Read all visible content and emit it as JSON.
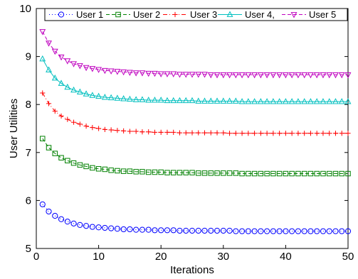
{
  "chart_data": {
    "type": "line",
    "xlabel": "Iterations",
    "ylabel": "User Utilities",
    "xlim": [
      0,
      50
    ],
    "ylim": [
      5,
      10
    ],
    "xticks": [
      0,
      10,
      20,
      30,
      40,
      50
    ],
    "yticks": [
      5,
      6,
      7,
      8,
      9,
      10
    ],
    "grid": false,
    "legend_position": "top",
    "x": [
      1,
      2,
      3,
      4,
      5,
      6,
      7,
      8,
      9,
      10,
      11,
      12,
      13,
      14,
      15,
      16,
      17,
      18,
      19,
      20,
      21,
      22,
      23,
      24,
      25,
      26,
      27,
      28,
      29,
      30,
      31,
      32,
      33,
      34,
      35,
      36,
      37,
      38,
      39,
      40,
      41,
      42,
      43,
      44,
      45,
      46,
      47,
      48,
      49,
      50
    ],
    "series": [
      {
        "name": "User 1",
        "color": "#0000ff",
        "marker": "circle",
        "line": "dotted",
        "values": [
          5.92,
          5.77,
          5.68,
          5.61,
          5.56,
          5.52,
          5.49,
          5.47,
          5.45,
          5.44,
          5.43,
          5.42,
          5.41,
          5.4,
          5.4,
          5.39,
          5.39,
          5.39,
          5.38,
          5.38,
          5.38,
          5.38,
          5.37,
          5.37,
          5.37,
          5.37,
          5.37,
          5.37,
          5.37,
          5.37,
          5.37,
          5.36,
          5.36,
          5.36,
          5.36,
          5.36,
          5.36,
          5.36,
          5.36,
          5.36,
          5.36,
          5.36,
          5.36,
          5.36,
          5.36,
          5.36,
          5.36,
          5.36,
          5.36,
          5.36
        ]
      },
      {
        "name": "User 2",
        "color": "#008000",
        "marker": "square",
        "line": "dashed",
        "values": [
          7.29,
          7.1,
          6.98,
          6.89,
          6.83,
          6.78,
          6.74,
          6.71,
          6.68,
          6.66,
          6.65,
          6.63,
          6.62,
          6.61,
          6.61,
          6.6,
          6.6,
          6.59,
          6.59,
          6.59,
          6.58,
          6.58,
          6.58,
          6.58,
          6.58,
          6.57,
          6.57,
          6.57,
          6.57,
          6.57,
          6.57,
          6.57,
          6.56,
          6.56,
          6.56,
          6.56,
          6.56,
          6.56,
          6.56,
          6.56,
          6.56,
          6.56,
          6.56,
          6.56,
          6.56,
          6.56,
          6.56,
          6.56,
          6.56,
          6.56
        ]
      },
      {
        "name": "User 3",
        "color": "#ff0000",
        "marker": "plus",
        "line": "dashdot",
        "values": [
          8.24,
          8.02,
          7.86,
          7.76,
          7.69,
          7.63,
          7.59,
          7.55,
          7.52,
          7.5,
          7.48,
          7.47,
          7.46,
          7.45,
          7.44,
          7.44,
          7.43,
          7.43,
          7.42,
          7.42,
          7.42,
          7.42,
          7.41,
          7.41,
          7.41,
          7.41,
          7.41,
          7.41,
          7.41,
          7.41,
          7.4,
          7.4,
          7.4,
          7.4,
          7.4,
          7.4,
          7.4,
          7.4,
          7.4,
          7.4,
          7.4,
          7.4,
          7.4,
          7.4,
          7.4,
          7.4,
          7.4,
          7.4,
          7.4,
          7.4
        ]
      },
      {
        "name": "User 4,",
        "color": "#00bfbf",
        "marker": "triangle-up",
        "line": "solid",
        "values": [
          8.95,
          8.72,
          8.55,
          8.44,
          8.36,
          8.3,
          8.26,
          8.22,
          8.19,
          8.17,
          8.15,
          8.14,
          8.13,
          8.12,
          8.11,
          8.1,
          8.1,
          8.09,
          8.09,
          8.09,
          8.08,
          8.08,
          8.08,
          8.08,
          8.08,
          8.07,
          8.07,
          8.07,
          8.07,
          8.07,
          8.07,
          8.07,
          8.06,
          8.06,
          8.06,
          8.06,
          8.06,
          8.06,
          8.06,
          8.06,
          8.06,
          8.06,
          8.06,
          8.06,
          8.06,
          8.06,
          8.06,
          8.06,
          8.06,
          8.06
        ]
      },
      {
        "name": "User 5",
        "color": "#bf00bf",
        "marker": "triangle-down",
        "line": "dashed",
        "values": [
          9.52,
          9.28,
          9.11,
          8.99,
          8.91,
          8.85,
          8.81,
          8.77,
          8.75,
          8.73,
          8.71,
          8.7,
          8.69,
          8.68,
          8.67,
          8.66,
          8.66,
          8.65,
          8.65,
          8.64,
          8.64,
          8.64,
          8.63,
          8.63,
          8.63,
          8.63,
          8.63,
          8.62,
          8.62,
          8.62,
          8.62,
          8.62,
          8.62,
          8.62,
          8.62,
          8.62,
          8.62,
          8.62,
          8.62,
          8.62,
          8.62,
          8.62,
          8.62,
          8.62,
          8.62,
          8.62,
          8.62,
          8.62,
          8.62,
          8.62
        ]
      }
    ]
  }
}
